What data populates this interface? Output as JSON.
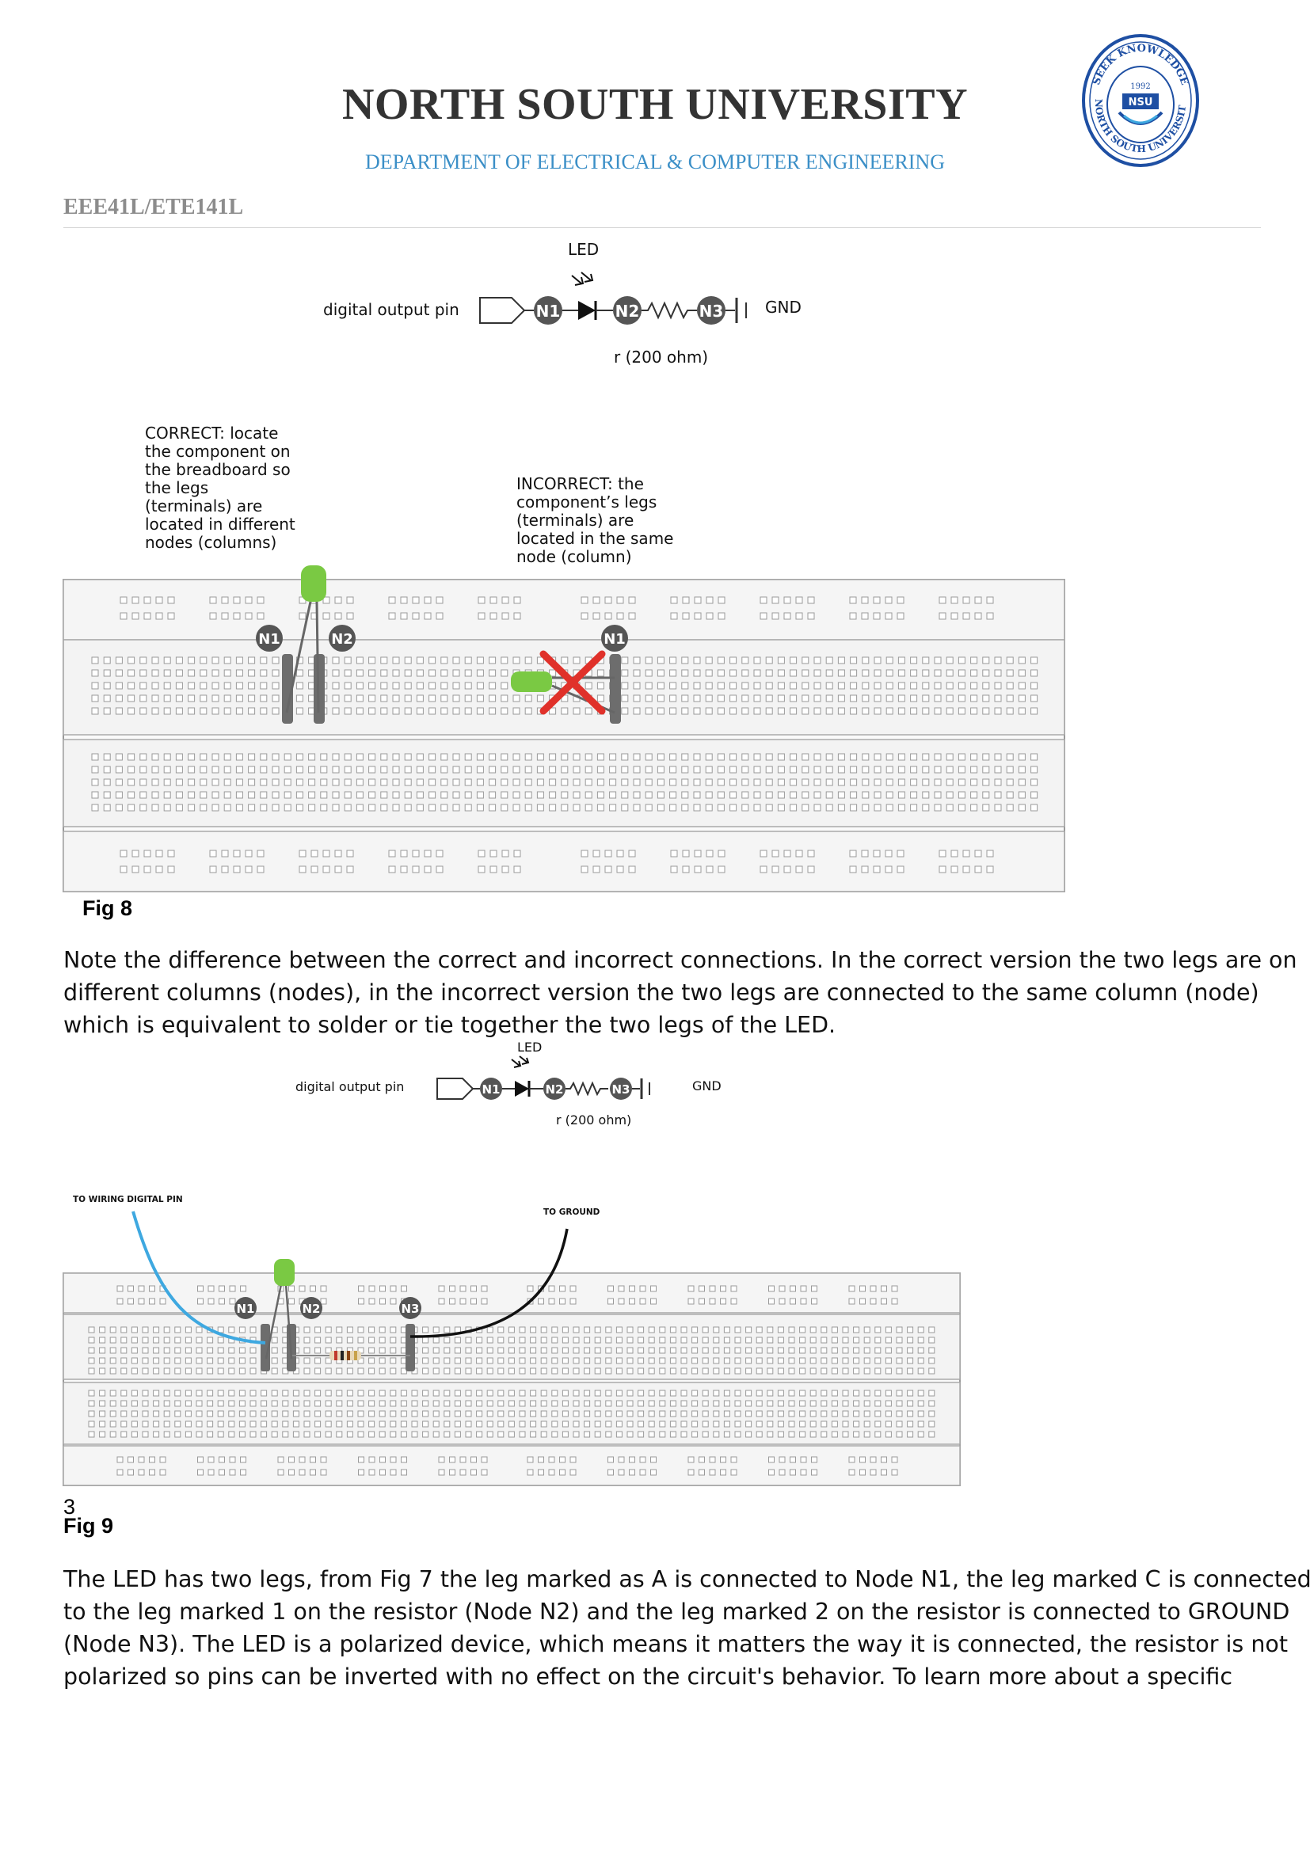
{
  "header": {
    "university": "NORTH SOUTH UNIVERSITY",
    "department": "DEPARTMENT OF ELECTRICAL & COMPUTER ENGINEERING",
    "course": "EEE41L/ETE141L",
    "seal": {
      "outer_text": "SEEK KNOWLEDGE",
      "inner_text": "NORTH SOUTH UNIVERSITY",
      "year": "1992",
      "abbr": "NSU",
      "color": "#1e4fa3"
    }
  },
  "schematic_labels": {
    "led": "LED",
    "digital_pin": "digital output pin",
    "gnd": "GND",
    "resistor": "r (200 ohm)",
    "n1": "N1",
    "n2": "N2",
    "n3": "N3"
  },
  "fig8": {
    "correct_note": [
      "CORRECT: locate",
      "the component on",
      "the breadboard so",
      "the legs",
      "(terminals) are",
      "located in different",
      "nodes (columns)"
    ],
    "incorrect_note": [
      "INCORRECT: the",
      "component’s legs",
      "(terminals) are",
      "located in the same",
      "node (column)"
    ],
    "caption": "Fig 8"
  },
  "paragraph1": [
    "Note the difference between the correct and incorrect connections. In the correct version the two legs are on",
    "different columns (nodes), in the incorrect version the two legs are connected to the same column (node)",
    "which is equivalent to solder or tie together the two legs of the LED."
  ],
  "fig9": {
    "to_digital": "TO WIRING DIGITAL PIN",
    "to_ground": "TO GROUND",
    "caption": "Fig 9"
  },
  "page_number": "3",
  "paragraph2": [
    "The LED has two legs, from Fig 7 the leg marked as A is connected to Node N1, the leg marked C is connected",
    "to the leg marked 1 on the resistor (Node N2) and the leg marked 2 on the resistor is connected to GROUND",
    "(Node N3). The LED is a polarized device, which means it matters the way it is connected, the resistor is not",
    "polarized so pins can be inverted with no effect on the circuit's behavior. To learn more about a specific"
  ],
  "colors": {
    "led_green": "#7ac943",
    "wire_blue": "#3ea8e0",
    "wire_black": "#111111",
    "x_red": "#e0312a",
    "node_gray": "#6d6d6d"
  }
}
